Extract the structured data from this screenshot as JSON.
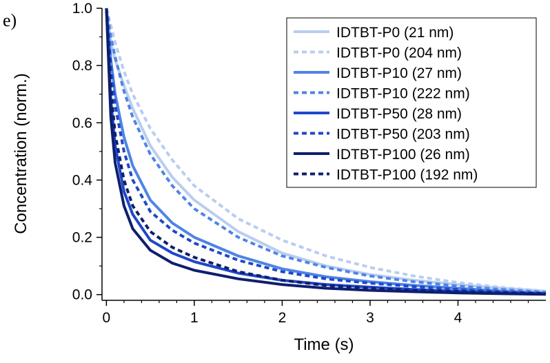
{
  "panel_label": "e)",
  "chart_data": {
    "type": "line",
    "title": "",
    "xlabel": "Time (s)",
    "ylabel": "Concentration (norm.)",
    "xlim": [
      -0.05,
      5.0
    ],
    "ylim": [
      -0.02,
      1.0
    ],
    "x_ticks": [
      {
        "value": 0,
        "label": "0"
      },
      {
        "value": 1,
        "label": "1"
      },
      {
        "value": 2,
        "label": "2"
      },
      {
        "value": 3,
        "label": "3"
      },
      {
        "value": 4,
        "label": "4"
      }
    ],
    "y_ticks": [
      {
        "value": 0.0,
        "label": "0.0"
      },
      {
        "value": 0.2,
        "label": "0.2"
      },
      {
        "value": 0.4,
        "label": "0.4"
      },
      {
        "value": 0.6,
        "label": "0.6"
      },
      {
        "value": 0.8,
        "label": "0.8"
      },
      {
        "value": 1.0,
        "label": "1.0"
      }
    ],
    "x": [
      0.0,
      0.05,
      0.1,
      0.2,
      0.3,
      0.5,
      0.75,
      1.0,
      1.5,
      2.0,
      2.5,
      3.0,
      3.5,
      4.0,
      4.5,
      5.0
    ],
    "legend_position": "top-right",
    "grid": false,
    "series": [
      {
        "name": "IDTBT-P0 (21 nm)",
        "color": "#b8cdf0",
        "dash": "solid",
        "values": [
          1.0,
          0.88,
          0.82,
          0.73,
          0.65,
          0.52,
          0.41,
          0.33,
          0.22,
          0.145,
          0.1,
          0.07,
          0.05,
          0.035,
          0.022,
          0.012
        ]
      },
      {
        "name": "IDTBT-P0 (204 nm)",
        "color": "#b8cdf0",
        "dash": "dashed",
        "values": [
          1.0,
          0.94,
          0.88,
          0.78,
          0.7,
          0.58,
          0.47,
          0.38,
          0.265,
          0.19,
          0.135,
          0.095,
          0.065,
          0.042,
          0.025,
          0.012
        ]
      },
      {
        "name": "IDTBT-P10 (27 nm)",
        "color": "#4f84e6",
        "dash": "solid",
        "values": [
          1.0,
          0.82,
          0.7,
          0.55,
          0.45,
          0.33,
          0.25,
          0.2,
          0.135,
          0.09,
          0.062,
          0.045,
          0.032,
          0.022,
          0.012,
          0.005
        ]
      },
      {
        "name": "IDTBT-P10 (222 nm)",
        "color": "#4f84e6",
        "dash": "dashed",
        "values": [
          1.0,
          0.9,
          0.83,
          0.71,
          0.62,
          0.49,
          0.38,
          0.3,
          0.2,
          0.135,
          0.095,
          0.065,
          0.045,
          0.03,
          0.018,
          0.008
        ]
      },
      {
        "name": "IDTBT-P50 (28 nm)",
        "color": "#1f48c9",
        "dash": "solid",
        "values": [
          1.0,
          0.68,
          0.52,
          0.36,
          0.28,
          0.19,
          0.145,
          0.115,
          0.075,
          0.05,
          0.035,
          0.026,
          0.018,
          0.012,
          0.007,
          0.003
        ]
      },
      {
        "name": "IDTBT-P50 (203 nm)",
        "color": "#1f48c9",
        "dash": "dashed",
        "values": [
          1.0,
          0.8,
          0.66,
          0.5,
          0.4,
          0.29,
          0.225,
          0.18,
          0.12,
          0.08,
          0.055,
          0.04,
          0.028,
          0.018,
          0.01,
          0.004
        ]
      },
      {
        "name": "IDTBT-P100 (26 nm)",
        "color": "#0e1f6e",
        "dash": "solid",
        "values": [
          1.0,
          0.62,
          0.46,
          0.31,
          0.23,
          0.155,
          0.11,
          0.085,
          0.055,
          0.035,
          0.022,
          0.015,
          0.01,
          0.006,
          0.003,
          0.001
        ]
      },
      {
        "name": "IDTBT-P100 (192 nm)",
        "color": "#0e1f6e",
        "dash": "dashed",
        "values": [
          1.0,
          0.72,
          0.56,
          0.4,
          0.31,
          0.22,
          0.165,
          0.13,
          0.08,
          0.05,
          0.032,
          0.022,
          0.015,
          0.01,
          0.006,
          0.003
        ]
      }
    ]
  }
}
